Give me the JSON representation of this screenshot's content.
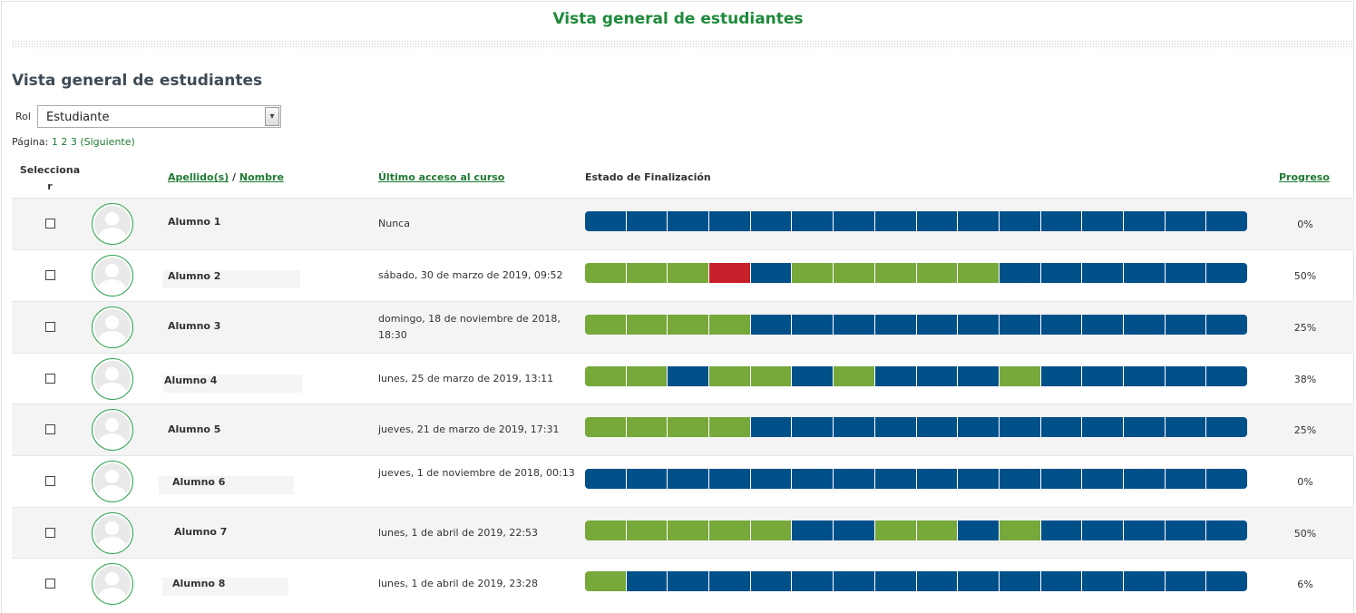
{
  "page_title": "Vista general de estudiantes",
  "section_title": "Vista general de estudiantes",
  "role_filter": {
    "label": "Rol",
    "value": "Estudiante"
  },
  "pagination": {
    "label": "Página:",
    "pages": [
      "1",
      "2",
      "3"
    ],
    "next": "(Siguiente)"
  },
  "table": {
    "headers": {
      "select": "Seleccionar",
      "lastname": "Apellido(s)",
      "separator": "/",
      "firstname": "Nombre",
      "last_access": "Último acceso al curso",
      "completion": "Estado de Finalización",
      "progress": "Progreso"
    },
    "rows": [
      {
        "name": "Alumno 1",
        "last_access": "Nunca",
        "progress": "0%",
        "status": [
          "n",
          "n",
          "n",
          "n",
          "n",
          "n",
          "n",
          "n",
          "n",
          "n",
          "n",
          "n",
          "n",
          "n",
          "n",
          "n"
        ]
      },
      {
        "name": "Alumno 2",
        "last_access": "sábado, 30 de marzo de 2019, 09:52",
        "progress": "50%",
        "status": [
          "c",
          "c",
          "c",
          "f",
          "n",
          "c",
          "c",
          "c",
          "c",
          "c",
          "n",
          "n",
          "n",
          "n",
          "n",
          "n"
        ]
      },
      {
        "name": "Alumno 3",
        "last_access": "domingo, 18 de noviembre de 2018, 18:30",
        "progress": "25%",
        "status": [
          "c",
          "c",
          "c",
          "c",
          "n",
          "n",
          "n",
          "n",
          "n",
          "n",
          "n",
          "n",
          "n",
          "n",
          "n",
          "n"
        ]
      },
      {
        "name": "Alumno 4",
        "last_access": "lunes, 25 de marzo de 2019, 13:11",
        "progress": "38%",
        "status": [
          "c",
          "c",
          "n",
          "c",
          "c",
          "n",
          "c",
          "n",
          "n",
          "n",
          "c",
          "n",
          "n",
          "n",
          "n",
          "n"
        ]
      },
      {
        "name": "Alumno 5",
        "last_access": "jueves, 21 de marzo de 2019, 17:31",
        "progress": "25%",
        "status": [
          "c",
          "c",
          "c",
          "c",
          "n",
          "n",
          "n",
          "n",
          "n",
          "n",
          "n",
          "n",
          "n",
          "n",
          "n",
          "n"
        ]
      },
      {
        "name": "Alumno 6",
        "last_access": "jueves, 1 de noviembre de 2018, 00:13",
        "progress": "0%",
        "status": [
          "n",
          "n",
          "n",
          "n",
          "n",
          "n",
          "n",
          "n",
          "n",
          "n",
          "n",
          "n",
          "n",
          "n",
          "n",
          "n"
        ]
      },
      {
        "name": "Alumno 7",
        "last_access": "lunes, 1 de abril de 2019, 22:53",
        "progress": "50%",
        "status": [
          "c",
          "c",
          "c",
          "c",
          "c",
          "n",
          "n",
          "c",
          "c",
          "n",
          "c",
          "n",
          "n",
          "n",
          "n",
          "n"
        ]
      },
      {
        "name": "Alumno 8",
        "last_access": "lunes, 1 de abril de 2019, 23:28",
        "progress": "6%",
        "status": [
          "c",
          "n",
          "n",
          "n",
          "n",
          "n",
          "n",
          "n",
          "n",
          "n",
          "n",
          "n",
          "n",
          "n",
          "n",
          "n"
        ]
      }
    ]
  },
  "colors": {
    "not_completed": "#00508a",
    "completed": "#76a83a",
    "failed": "#c8202a",
    "title_green": "#1e8a3a"
  }
}
